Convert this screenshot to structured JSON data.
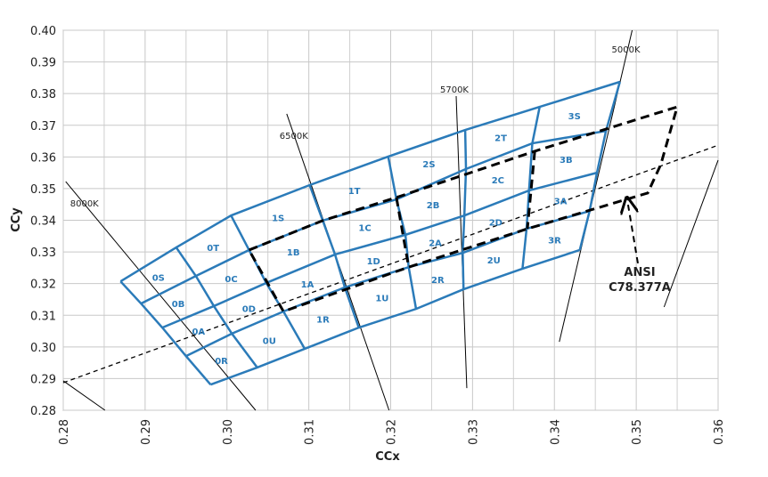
{
  "chart_data": {
    "type": "bin-map",
    "xlabel": "CCx",
    "ylabel": "CCy",
    "xlim": [
      0.28,
      0.36
    ],
    "ylim": [
      0.28,
      0.4
    ],
    "xticks": [
      0.28,
      0.29,
      {
        "value": 0.3,
        "label": "0.30"
      },
      0.31,
      0.32,
      0.33,
      0.34,
      0.35,
      0.36
    ],
    "yticks": [
      0.28,
      0.29,
      {
        "value": 0.3,
        "label": "0.30"
      },
      0.31,
      0.32,
      0.33,
      0.34,
      0.35,
      0.36,
      0.37,
      0.38,
      0.39,
      {
        "value": 0.4,
        "label": "0.40"
      }
    ],
    "x_minor_grid": [
      0.285,
      0.295,
      0.305,
      0.315,
      0.325,
      0.335,
      0.345,
      0.355
    ],
    "grid": true,
    "bins": {
      "color": "#2b7bb9",
      "columns": [
        {
          "x": [
            0.287,
            0.2895,
            0.2921,
            0.295,
            0.298
          ],
          "y": [
            0.3207,
            0.3137,
            0.3061,
            0.2971,
            0.2881
          ]
        },
        {
          "x": [
            0.2938,
            0.2962,
            0.2984,
            0.3006,
            0.3037
          ],
          "y": [
            0.3314,
            0.3224,
            0.3129,
            0.3042,
            0.2935
          ]
        },
        {
          "x": [
            0.3005,
            0.3027,
            0.3048,
            0.3069,
            0.3095
          ],
          "y": [
            0.3415,
            0.3306,
            0.3202,
            0.3112,
            0.2994
          ]
        },
        {
          "x": [
            0.3101,
            0.3117,
            0.3132,
            0.3144,
            0.3161
          ],
          "y": [
            0.3511,
            0.3399,
            0.3292,
            0.3188,
            0.3061
          ]
        },
        {
          "x": [
            0.3197,
            0.3207,
            0.3218,
            0.3222,
            0.3231
          ],
          "y": [
            0.3601,
            0.3466,
            0.3354,
            0.3252,
            0.312
          ]
        },
        {
          "x": [
            0.3291,
            0.3292,
            0.329,
            0.3288,
            0.3289
          ],
          "y": [
            0.3685,
            0.3562,
            0.3415,
            0.3297,
            0.3182
          ]
        },
        {
          "x": [
            0.3382,
            0.3373,
            0.3369,
            0.3366,
            0.3361
          ],
          "y": [
            0.3758,
            0.3643,
            0.3494,
            0.3373,
            0.3247
          ]
        },
        {
          "x": [
            0.348,
            0.3463,
            0.3452,
            0.3443,
            0.3431
          ],
          "y": [
            0.3837,
            0.3682,
            0.355,
            0.3429,
            0.3306
          ]
        }
      ],
      "labels": [
        [
          "0S",
          "0B",
          "0A",
          "0R"
        ],
        [
          "0T",
          "0C",
          "0D",
          "0U"
        ],
        [
          "1S",
          "1B",
          "1A",
          "1R"
        ],
        [
          "1T",
          "1C",
          "1D",
          "1U"
        ],
        [
          "2S",
          "2B",
          "2A",
          "2R"
        ],
        [
          "2T",
          "2C",
          "2D",
          "2U"
        ],
        [
          "3S",
          "3B",
          "3A",
          "3R"
        ]
      ]
    },
    "cct_lines": [
      {
        "name": "8000K",
        "x": [
          0.2803,
          0.3035
        ],
        "y": [
          0.3522,
          0.28
        ]
      },
      {
        "name": "6500K",
        "x": [
          0.3073,
          0.3198
        ],
        "y": [
          0.3736,
          0.28
        ]
      },
      {
        "name": "5700K",
        "x": [
          0.328,
          0.3293
        ],
        "y": [
          0.3792,
          0.287
        ]
      },
      {
        "name": "5000K",
        "x": [
          0.3495,
          0.3406
        ],
        "y": [
          0.4,
          0.3016
        ]
      },
      {
        "x": [
          0.36,
          0.3534
        ],
        "y": [
          0.359,
          0.3126
        ]
      },
      {
        "x": [
          0.28,
          0.2851
        ],
        "y": [
          0.2893,
          0.28
        ]
      }
    ],
    "planckian": {
      "x": [
        0.28,
        0.36
      ],
      "y": [
        0.2887,
        0.3637
      ]
    },
    "ansi": {
      "outline": {
        "x": [
          0.3027,
          0.3117,
          0.3207,
          0.3376,
          0.3463,
          0.355,
          0.353,
          0.3514,
          0.3367,
          0.3222,
          0.3069,
          0.3027
        ],
        "y": [
          0.3306,
          0.3399,
          0.3472,
          0.3618,
          0.3688,
          0.3758,
          0.3576,
          0.3486,
          0.3373,
          0.3252,
          0.3112,
          0.3306
        ]
      },
      "dividers": [
        {
          "x": [
            0.3207,
            0.3222
          ],
          "y": [
            0.3472,
            0.3252
          ]
        },
        {
          "x": [
            0.3376,
            0.3367
          ],
          "y": [
            0.3618,
            0.3373
          ]
        }
      ],
      "arrow": {
        "x": [
          0.3502,
          0.349
        ],
        "y": [
          0.3264,
          0.3449
        ]
      },
      "label": [
        "ANSI",
        "C78.377A"
      ]
    }
  }
}
